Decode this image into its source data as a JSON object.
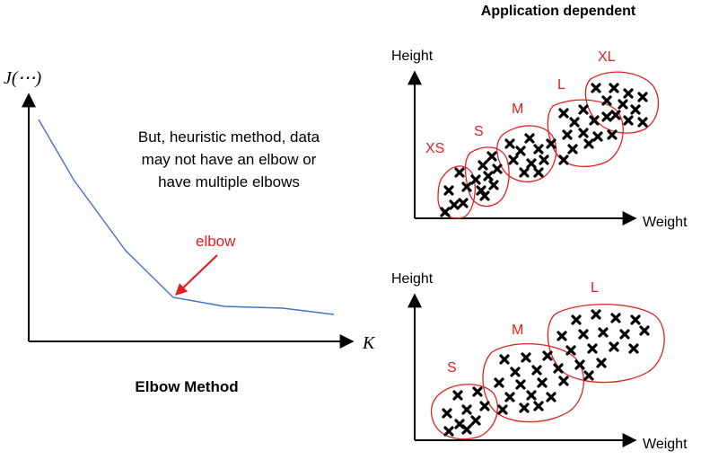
{
  "left_panel": {
    "y_axis_label": "J(⋯)",
    "x_axis_label": "K",
    "note_lines": [
      "But, heuristic method, data",
      "may not have an elbow or",
      "have multiple elbows"
    ],
    "elbow_label": "elbow",
    "caption": "Elbow Method",
    "curve_color": "#4472c4",
    "arrow_color": "#e02020"
  },
  "right_panel": {
    "title": "Application dependent",
    "top_plot": {
      "y_axis_label": "Height",
      "x_axis_label": "Weight",
      "cluster_labels": [
        "XS",
        "S",
        "M",
        "L",
        "XL"
      ]
    },
    "bottom_plot": {
      "y_axis_label": "Height",
      "x_axis_label": "Weight",
      "cluster_labels": [
        "S",
        "M",
        "L"
      ]
    },
    "cluster_outline_color": "#e02020",
    "marker_icon": "x-cross-marker"
  }
}
